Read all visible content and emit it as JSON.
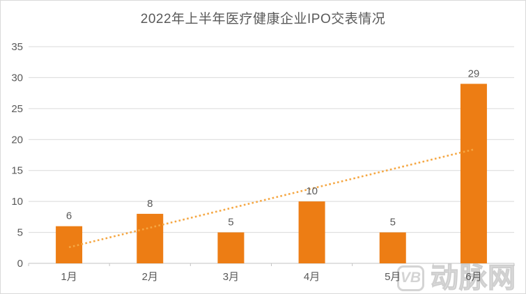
{
  "title": "2022年上半年医疗健康企业IPO交表情况",
  "watermark": {
    "logo_text": "VB",
    "brand_text": "动脉网"
  },
  "colors": {
    "bar": "#ED7D14",
    "trendline": "#F5A743",
    "gridline": "#D9D9D9",
    "axis": "#C3C3C3",
    "label_text": "#595959",
    "watermark": "#D4D4D4",
    "background": "#FFFFFF",
    "border": "#D9D9D9"
  },
  "chart_data": {
    "type": "bar",
    "title": "2022年上半年医疗健康企业IPO交表情况",
    "categories": [
      "1月",
      "2月",
      "3月",
      "4月",
      "5月",
      "6月"
    ],
    "values": [
      6,
      8,
      5,
      10,
      5,
      29
    ],
    "data_labels": [
      6,
      8,
      5,
      10,
      5,
      29
    ],
    "xlabel": "",
    "ylabel": "",
    "ylim": [
      0,
      35
    ],
    "ytick_interval": 5,
    "yticks": [
      0,
      5,
      10,
      15,
      20,
      25,
      30,
      35
    ],
    "grid": true,
    "legend": false,
    "trendline": {
      "type": "linear",
      "style": "dotted",
      "start_value": 2.6,
      "end_value": 18.4
    }
  }
}
